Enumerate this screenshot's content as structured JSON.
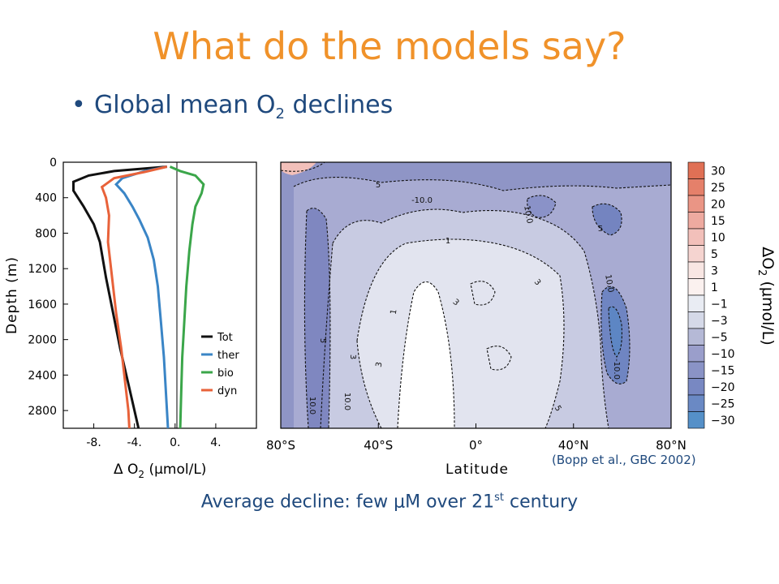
{
  "slide": {
    "title": "What do the models say?",
    "bullet": {
      "prefix": "Global mean O",
      "sub": "2",
      "suffix": " declines"
    },
    "caption": {
      "prefix": "Average decline: few ",
      "mu": "μ",
      "mid": "M over 21",
      "sup": "st",
      "suffix": " century"
    },
    "citation": "(Bopp et al., GBC 2002)"
  },
  "colors": {
    "title": "#f0922a",
    "text": "#1f497d"
  },
  "chart_data": [
    {
      "type": "line",
      "xlabel_prefix": "Δ O",
      "xlabel_sub": "2",
      "xlabel_unit": " (μmol/L)",
      "ylabel": "Depth (m)",
      "x_ticks": [
        "-8.",
        "-4.",
        "0.",
        "4."
      ],
      "y_ticks": [
        "0",
        "400",
        "800",
        "1200",
        "1600",
        "2000",
        "2400",
        "2800"
      ],
      "xlim": [
        -11,
        8
      ],
      "ylim": [
        3000,
        0
      ],
      "series": [
        {
          "name": "Tot",
          "color": "#111111",
          "points": [
            [
              -0.8,
              50
            ],
            [
              -6,
              100
            ],
            [
              -8.5,
              150
            ],
            [
              -10,
              220
            ],
            [
              -10,
              320
            ],
            [
              -9,
              500
            ],
            [
              -8,
              700
            ],
            [
              -7.4,
              900
            ],
            [
              -6.8,
              1300
            ],
            [
              -6.1,
              1700
            ],
            [
              -5.4,
              2100
            ],
            [
              -4.6,
              2500
            ],
            [
              -4,
              2800
            ],
            [
              -3.6,
              3000
            ]
          ]
        },
        {
          "name": "ther",
          "color": "#3a85c6",
          "points": [
            [
              -0.8,
              50
            ],
            [
              -3,
              100
            ],
            [
              -5.2,
              180
            ],
            [
              -5.8,
              250
            ],
            [
              -5,
              350
            ],
            [
              -4.2,
              500
            ],
            [
              -3.5,
              650
            ],
            [
              -2.7,
              850
            ],
            [
              -2.1,
              1100
            ],
            [
              -1.7,
              1400
            ],
            [
              -1.4,
              1800
            ],
            [
              -1.1,
              2200
            ],
            [
              -0.9,
              2600
            ],
            [
              -0.7,
              3000
            ]
          ]
        },
        {
          "name": "bio",
          "color": "#3ba64a",
          "points": [
            [
              -0.5,
              50
            ],
            [
              0.5,
              100
            ],
            [
              2,
              150
            ],
            [
              2.8,
              250
            ],
            [
              2.6,
              350
            ],
            [
              2,
              500
            ],
            [
              1.7,
              700
            ],
            [
              1.4,
              1000
            ],
            [
              1.1,
              1400
            ],
            [
              0.9,
              1800
            ],
            [
              0.7,
              2200
            ],
            [
              0.6,
              2600
            ],
            [
              0.5,
              3000
            ]
          ]
        },
        {
          "name": "dyn",
          "color": "#e8623a",
          "points": [
            [
              -0.8,
              50
            ],
            [
              -3,
              110
            ],
            [
              -6,
              180
            ],
            [
              -7.2,
              280
            ],
            [
              -6.8,
              400
            ],
            [
              -6.5,
              600
            ],
            [
              -6.6,
              900
            ],
            [
              -6.2,
              1300
            ],
            [
              -5.8,
              1700
            ],
            [
              -5.3,
              2100
            ],
            [
              -5,
              2400
            ],
            [
              -4.8,
              2600
            ],
            [
              -4.6,
              2800
            ],
            [
              -4.5,
              3000
            ]
          ]
        }
      ],
      "legend_position": "bottom-right"
    },
    {
      "type": "heatmap",
      "xlabel": "Latitude",
      "x_ticks": [
        "80°S",
        "40°S",
        "0°",
        "40°N",
        "80°N"
      ],
      "colorbar_label_prefix": "ΔO",
      "colorbar_label_sub": "2",
      "colorbar_label_unit": " (μmol/L)",
      "colorbar_ticks": [
        "30",
        "25",
        "20",
        "15",
        "10",
        "5",
        "3",
        "1",
        "−1",
        "−3",
        "−5",
        "−10",
        "−15",
        "−20",
        "−25",
        "−30"
      ],
      "colorbar_colors": [
        "#e07055",
        "#e5806a",
        "#ea9585",
        "#eeaaa0",
        "#f2c0ba",
        "#f5d4d0",
        "#f8e6e3",
        "#fbf1ef",
        "#e9ecf3",
        "#d5d9e8",
        "#b5b9d6",
        "#9a9ecb",
        "#8a93c6",
        "#7888c2",
        "#6a89c4",
        "#5590c8"
      ],
      "contour_labels": [
        "-10.0",
        "10.0",
        "10.0",
        "10.0",
        "10.0",
        "3",
        "3",
        "3",
        "3",
        "5",
        "5",
        "5",
        "5",
        "1",
        "1",
        "-10.0"
      ]
    }
  ]
}
